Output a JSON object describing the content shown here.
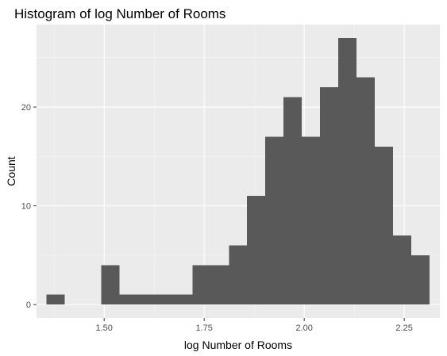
{
  "chart_data": {
    "type": "bar",
    "title": "Histogram of log Number of Rooms",
    "xlabel": "log Number of Rooms",
    "ylabel": "Count",
    "xlim": [
      1.331,
      2.339
    ],
    "ylim": [
      -1.35,
      28.35
    ],
    "bin_width": 0.0456,
    "bins": [
      {
        "x0": 1.3557,
        "x1": 1.4013,
        "count": 1
      },
      {
        "x0": 1.4013,
        "x1": 1.4469,
        "count": 0
      },
      {
        "x0": 1.4469,
        "x1": 1.4925,
        "count": 0
      },
      {
        "x0": 1.4925,
        "x1": 1.5381,
        "count": 4
      },
      {
        "x0": 1.5381,
        "x1": 1.5837,
        "count": 1
      },
      {
        "x0": 1.5837,
        "x1": 1.6293,
        "count": 1
      },
      {
        "x0": 1.6293,
        "x1": 1.6749,
        "count": 1
      },
      {
        "x0": 1.6749,
        "x1": 1.7205,
        "count": 1
      },
      {
        "x0": 1.7205,
        "x1": 1.7661,
        "count": 4
      },
      {
        "x0": 1.7661,
        "x1": 1.8117,
        "count": 4
      },
      {
        "x0": 1.8117,
        "x1": 1.8573,
        "count": 6
      },
      {
        "x0": 1.8573,
        "x1": 1.9029,
        "count": 11
      },
      {
        "x0": 1.9029,
        "x1": 1.9485,
        "count": 17
      },
      {
        "x0": 1.9485,
        "x1": 1.9941,
        "count": 21
      },
      {
        "x0": 1.9941,
        "x1": 2.0397,
        "count": 17
      },
      {
        "x0": 2.0397,
        "x1": 2.0853,
        "count": 22
      },
      {
        "x0": 2.0853,
        "x1": 2.1309,
        "count": 27
      },
      {
        "x0": 2.1309,
        "x1": 2.1765,
        "count": 23
      },
      {
        "x0": 2.1765,
        "x1": 2.2221,
        "count": 16
      },
      {
        "x0": 2.2221,
        "x1": 2.2677,
        "count": 7
      },
      {
        "x0": 2.2677,
        "x1": 2.3133,
        "count": 5
      }
    ],
    "x_ticks": [
      {
        "value": 1.5,
        "label": "1.50"
      },
      {
        "value": 1.75,
        "label": "1.75"
      },
      {
        "value": 2.0,
        "label": "2.00"
      },
      {
        "value": 2.25,
        "label": "2.25"
      }
    ],
    "y_ticks": [
      {
        "value": 0,
        "label": "0"
      },
      {
        "value": 10,
        "label": "10"
      },
      {
        "value": 20,
        "label": "20"
      }
    ],
    "grid": true,
    "legend": "none",
    "colors": {
      "panel_background": "#ebebeb",
      "grid_major": "#ffffff",
      "grid_minor": "#f5f5f5",
      "bar_fill": "#595959",
      "tick_mark": "#333333"
    }
  }
}
